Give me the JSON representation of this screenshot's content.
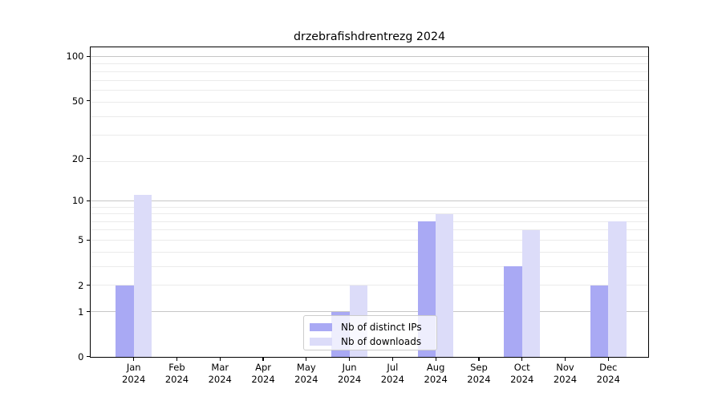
{
  "title": "drzebrafishdrentrezg 2024",
  "chart_data": {
    "type": "bar",
    "title": "drzebrafishdrentrezg 2024",
    "categories": [
      "Jan 2024",
      "Feb 2024",
      "Mar 2024",
      "Apr 2024",
      "May 2024",
      "Jun 2024",
      "Jul 2024",
      "Aug 2024",
      "Sep 2024",
      "Oct 2024",
      "Nov 2024",
      "Dec 2024"
    ],
    "category_months": [
      "Jan",
      "Feb",
      "Mar",
      "Apr",
      "May",
      "Jun",
      "Jul",
      "Aug",
      "Sep",
      "Oct",
      "Nov",
      "Dec"
    ],
    "category_year": "2024",
    "series": [
      {
        "name": "Nb of distinct IPs",
        "color": "#a9a9f4",
        "values": [
          2,
          0,
          0,
          0,
          0,
          1,
          0,
          7,
          0,
          3,
          0,
          2
        ]
      },
      {
        "name": "Nb of downloads",
        "color": "#dcdcf9",
        "values": [
          11,
          0,
          0,
          0,
          0,
          2,
          0,
          8,
          0,
          6,
          0,
          7
        ]
      }
    ],
    "xlabel": "",
    "ylabel": "",
    "yscale": "log1p",
    "y_ticks": [
      0,
      1,
      2,
      5,
      10,
      20,
      50,
      100
    ],
    "ylim": [
      0,
      116
    ],
    "grid": true,
    "grid_major_color": "#c6c6c6",
    "grid_minor_color": "#ebebeb",
    "axis_color": "#000000",
    "legend_position": "lower center"
  }
}
